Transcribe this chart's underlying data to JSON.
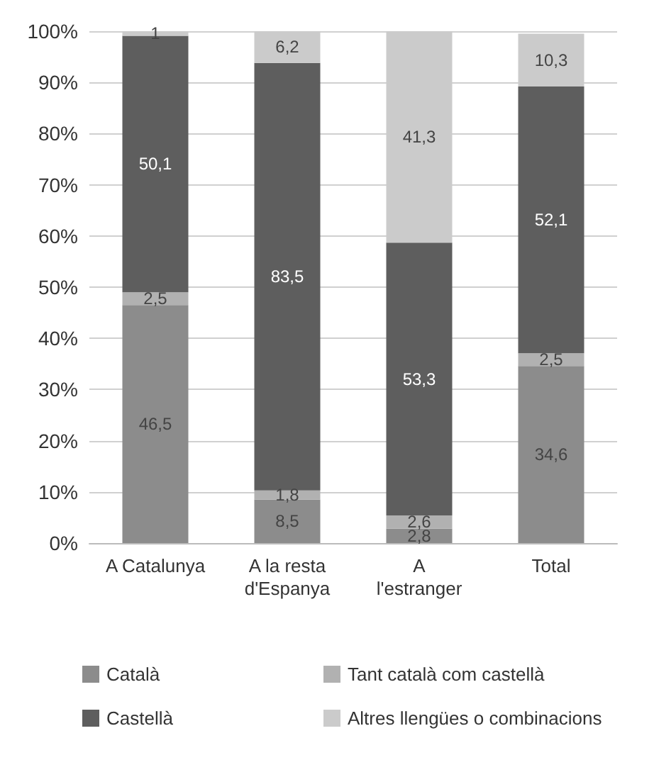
{
  "chart_data": {
    "type": "bar",
    "stacked": true,
    "categories": [
      "A Catalunya",
      "A la resta\nd'Espanya",
      "A\nl'estranger",
      "Total"
    ],
    "series": [
      {
        "name": "Català",
        "color": "#8c8c8c",
        "values": [
          46.5,
          8.5,
          2.8,
          34.6
        ],
        "value_labels": [
          "46,5",
          "8,5",
          "2,8",
          "34,6"
        ]
      },
      {
        "name": "Tant català com castellà",
        "color": "#b1b1b1",
        "values": [
          2.5,
          1.8,
          2.6,
          2.5
        ],
        "value_labels": [
          "2,5",
          "1,8",
          "2,6",
          "2,5"
        ]
      },
      {
        "name": "Castellà",
        "color": "#5e5e5e",
        "values": [
          50.1,
          83.5,
          53.3,
          52.1
        ],
        "value_labels": [
          "50,1",
          "83,5",
          "53,3",
          "52,1"
        ]
      },
      {
        "name": "Altres llengües o combinacions",
        "color": "#cbcbcb",
        "values": [
          1,
          6.2,
          41.3,
          10.3
        ],
        "value_labels": [
          "1",
          "6,2",
          "41,3",
          "10,3"
        ]
      }
    ],
    "ylim": [
      0,
      100
    ],
    "yticks": [
      {
        "value": 0,
        "label": "0%"
      },
      {
        "value": 10,
        "label": "10%"
      },
      {
        "value": 20,
        "label": "20%"
      },
      {
        "value": 30,
        "label": "30%"
      },
      {
        "value": 40,
        "label": "40%"
      },
      {
        "value": 50,
        "label": "50%"
      },
      {
        "value": 60,
        "label": "60%"
      },
      {
        "value": 70,
        "label": "70%"
      },
      {
        "value": 80,
        "label": "80%"
      },
      {
        "value": 90,
        "label": "90%"
      },
      {
        "value": 100,
        "label": "100%"
      }
    ],
    "grid": "y",
    "legend": "bottom"
  }
}
